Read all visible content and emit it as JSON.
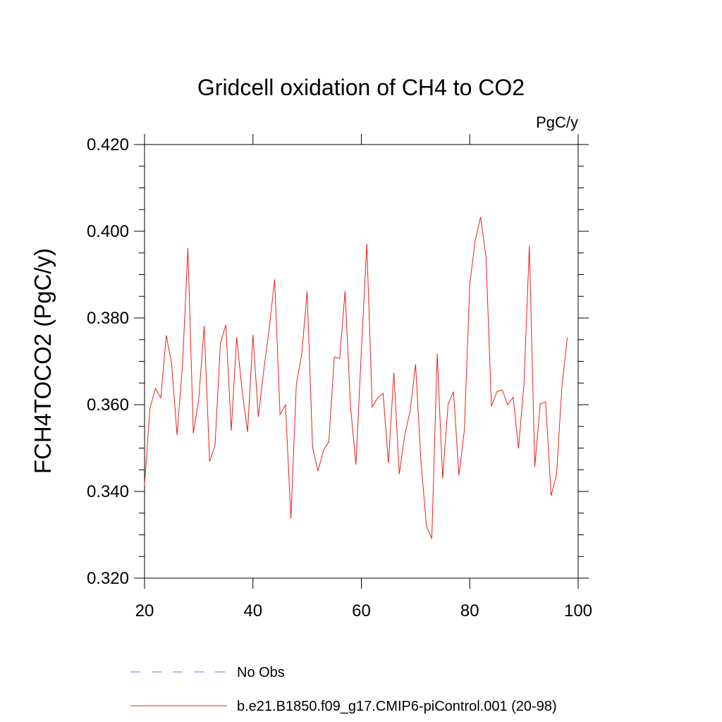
{
  "chart_data": {
    "type": "line",
    "title": "Gridcell oxidation of CH4 to CO2",
    "units": "PgC/y",
    "xlabel": "",
    "ylabel": "FCH4TOCO2  (PgC/y)",
    "xlim": [
      20,
      100
    ],
    "ylim": [
      0.32,
      0.42
    ],
    "x_ticks": [
      20,
      40,
      60,
      80,
      100
    ],
    "x_tick_labels": [
      "20",
      "40",
      "60",
      "80",
      "100"
    ],
    "y_ticks": [
      0.32,
      0.34,
      0.36,
      0.38,
      0.4,
      0.42
    ],
    "y_tick_labels": [
      "0.320",
      "0.340",
      "0.360",
      "0.380",
      "0.400",
      "0.420"
    ],
    "legend": [
      {
        "name": "No Obs",
        "color": "#7b6fd6",
        "style": "dashed"
      },
      {
        "name": "b.e21.B1850.f09_g17.CMIP6-piControl.001 (20-98)",
        "color": "#e8201b",
        "style": "solid"
      }
    ],
    "series": [
      {
        "name": "b.e21.B1850.f09_g17.CMIP6-piControl.001 (20-98)",
        "color": "#e8201b",
        "x": [
          20,
          21,
          22,
          23,
          24,
          25,
          26,
          27,
          28,
          29,
          30,
          31,
          32,
          33,
          34,
          35,
          36,
          37,
          38,
          39,
          40,
          41,
          42,
          43,
          44,
          45,
          46,
          47,
          48,
          49,
          50,
          51,
          52,
          53,
          54,
          55,
          56,
          57,
          58,
          59,
          60,
          61,
          62,
          63,
          64,
          65,
          66,
          67,
          68,
          69,
          70,
          71,
          72,
          73,
          74,
          75,
          76,
          77,
          78,
          79,
          80,
          81,
          82,
          83,
          84,
          85,
          86,
          87,
          88,
          89,
          90,
          91,
          92,
          93,
          94,
          95,
          96,
          97,
          98
        ],
        "values": [
          0.3415,
          0.3592,
          0.3637,
          0.3616,
          0.376,
          0.3695,
          0.353,
          0.369,
          0.3961,
          0.3534,
          0.3613,
          0.3782,
          0.3469,
          0.3505,
          0.3742,
          0.3784,
          0.354,
          0.3756,
          0.3632,
          0.3537,
          0.3761,
          0.3572,
          0.368,
          0.3775,
          0.3889,
          0.3577,
          0.36,
          0.3337,
          0.3648,
          0.3715,
          0.3862,
          0.3502,
          0.3447,
          0.3494,
          0.3515,
          0.371,
          0.3707,
          0.3862,
          0.3597,
          0.3462,
          0.3724,
          0.3971,
          0.3595,
          0.3616,
          0.3626,
          0.3465,
          0.3674,
          0.344,
          0.353,
          0.3586,
          0.3693,
          0.3468,
          0.3321,
          0.3291,
          0.3717,
          0.343,
          0.3601,
          0.363,
          0.3437,
          0.3542,
          0.3878,
          0.3978,
          0.4033,
          0.394,
          0.3596,
          0.363,
          0.3634,
          0.36,
          0.3617,
          0.3499,
          0.3648,
          0.3967,
          0.3457,
          0.3602,
          0.3606,
          0.339,
          0.3439,
          0.364,
          0.3755
        ]
      }
    ]
  }
}
